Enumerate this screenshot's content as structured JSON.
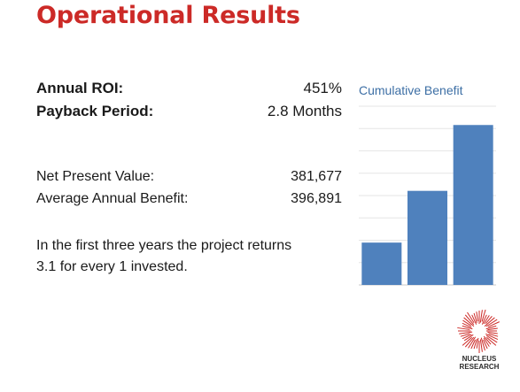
{
  "slide": {
    "title": "Operational Results"
  },
  "headline_metrics": [
    {
      "label": "Annual ROI:",
      "value": "451%"
    },
    {
      "label": "Payback Period:",
      "value": "2.8 Months"
    }
  ],
  "financials": [
    {
      "label": "Net Present Value:",
      "value": "381,677"
    },
    {
      "label": "Average Annual Benefit:",
      "value": "396,891"
    }
  ],
  "summary": {
    "line1": "In the first three years the project returns",
    "line2": "3.1 for every 1 invested."
  },
  "chart_data": {
    "type": "bar",
    "title": "Cumulative Benefit",
    "categories": [
      "",
      "",
      ""
    ],
    "values": [
      0.9,
      2.0,
      3.4
    ],
    "ylim": [
      0,
      3.8
    ],
    "grid": true,
    "color": "#4f81bd",
    "gridline_count": 8
  },
  "logo": {
    "name": "nucleus-research-logo",
    "line1": "NUCLEUS",
    "line2": "RESEARCH",
    "color": "#cc2a27"
  }
}
